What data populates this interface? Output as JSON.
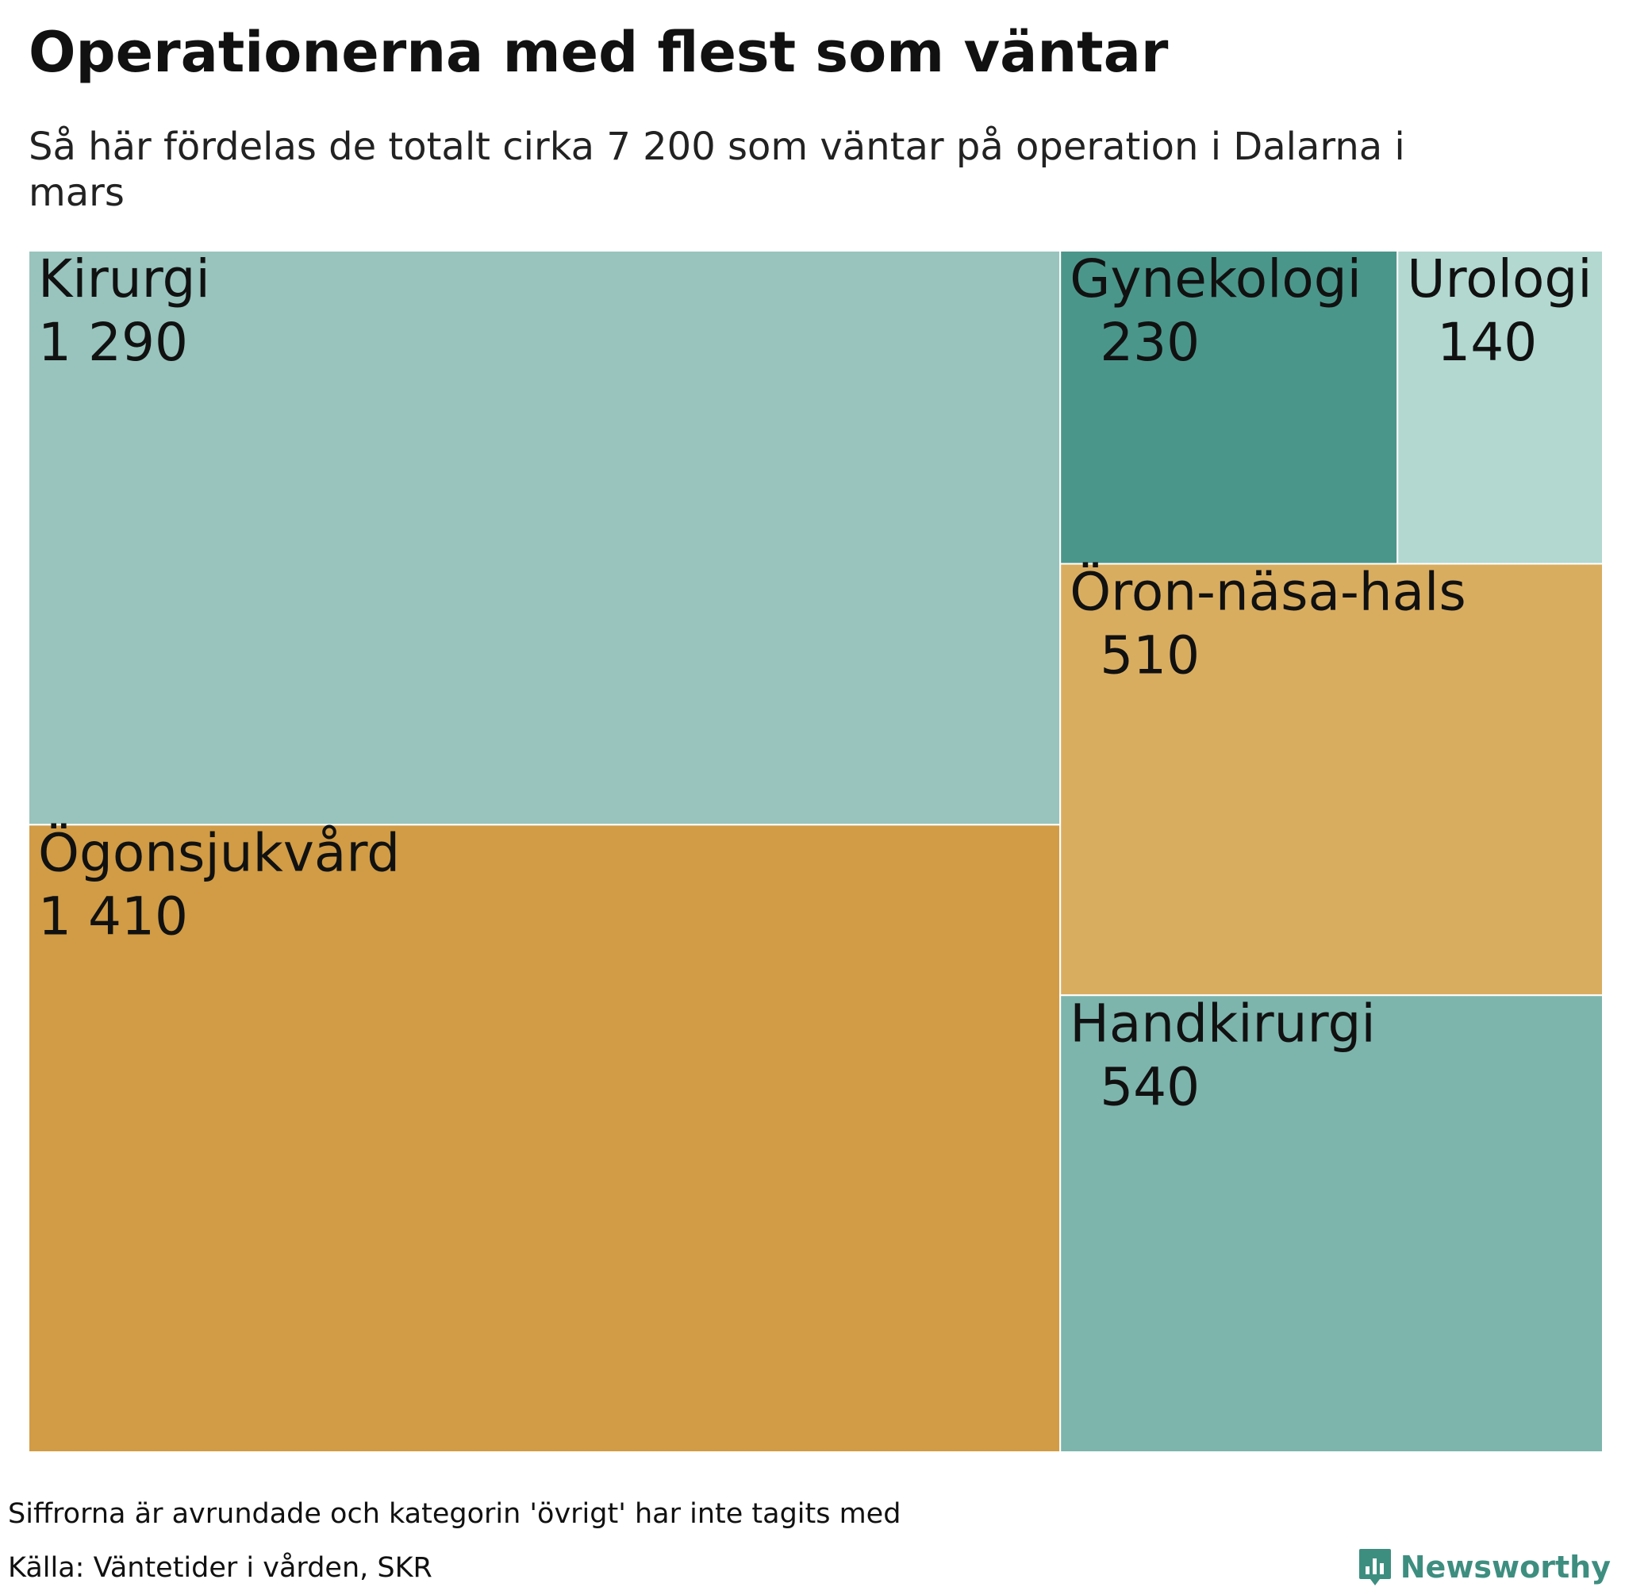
{
  "chart_data": {
    "type": "treemap",
    "title": "Operationerna med flest som väntar",
    "subtitle": "Så här fördelas de totalt cirka 7 200 som väntar på operation i Dalarna i mars",
    "items": [
      {
        "name": "Kirurgi",
        "value": 1290,
        "value_label": "1 290",
        "color": "#98c4bd"
      },
      {
        "name": "Ögonsjukvård",
        "value": 1410,
        "value_label": "1 410",
        "color": "#d19c45"
      },
      {
        "name": "Gynekologi",
        "value": 230,
        "value_label": "230",
        "color": "#4b968a"
      },
      {
        "name": "Urologi",
        "value": 140,
        "value_label": "140",
        "color": "#b2d8d0"
      },
      {
        "name": "Öron-näsa-hals",
        "value": 510,
        "value_label": "510",
        "color": "#d9ad60"
      },
      {
        "name": "Handkirurgi",
        "value": 540,
        "value_label": "540",
        "color": "#7db5ad"
      }
    ],
    "note": "Siffrorna är avrundade och kategorin 'övrigt' har inte tagits med",
    "source": "Källa: Väntetider i vården, SKR"
  },
  "brand": {
    "name": "Newsworthy",
    "icon": "bar-chart-speech-bubble-icon",
    "color": "#3e8e80"
  }
}
